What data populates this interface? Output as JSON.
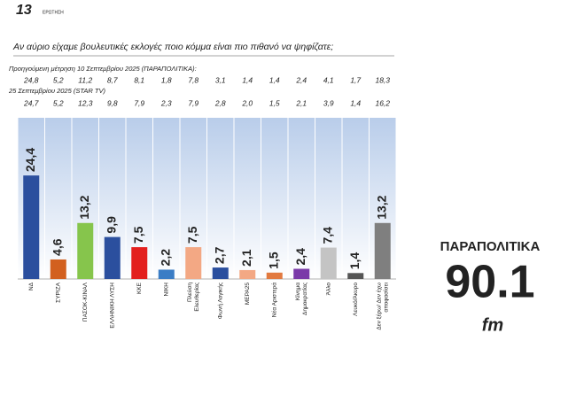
{
  "chart_data": {
    "type": "bar",
    "question_number": "13",
    "question_label": "ΕΡΩΤΗΣΗ",
    "title": "Αν αύριο είχαμε βουλευτικές εκλογές ποιο κόμμα είναι πιο πιθανό να ψηφίζατε;",
    "previous_rows": [
      {
        "label": "Προηγούμενη μέτρηση 10 Σεπτεμβρίου 2025 (ΠΑΡΑΠΟΛΙΤΙΚΑ):",
        "values": [
          "24,8",
          "5,2",
          "11,2",
          "8,7",
          "8,1",
          "1,8",
          "7,8",
          "3,1",
          "1,4",
          "1,4",
          "2,4",
          "4,1",
          "1,7",
          "18,3"
        ]
      },
      {
        "label": "25 Σεπτεμβρίου 2025 (STAR TV)",
        "values": [
          "24,7",
          "5,2",
          "12,3",
          "9,8",
          "7,9",
          "2,3",
          "7,9",
          "2,8",
          "2,0",
          "1,5",
          "2,1",
          "3,9",
          "1,4",
          "16,2"
        ]
      }
    ],
    "categories": [
      [
        "ΝΔ"
      ],
      [
        "ΣΥΡΙΖΑ"
      ],
      [
        "ΠΑΣΟΚ-ΚΙΝΑΛ"
      ],
      [
        "ΕΛΛΗΝΙΚΗ ΛΥΣΗ"
      ],
      [
        "ΚΚΕ"
      ],
      [
        "ΝΙΚΗ"
      ],
      [
        "Πλεύση",
        "Ελευθερίας"
      ],
      [
        "Φωνή Λογικής"
      ],
      [
        "ΜΕΡΑ25"
      ],
      [
        "Νέα Αριστερά"
      ],
      [
        "Κίνημα",
        "Δημοκρατίας"
      ],
      [
        "Άλλο"
      ],
      [
        "Λευκό/Άκυρο"
      ],
      [
        "Δεν ξέρω/ Δεν έχω",
        "αποφασίσει"
      ]
    ],
    "values": [
      24.4,
      4.6,
      13.2,
      9.9,
      7.5,
      2.2,
      7.5,
      2.7,
      2.1,
      1.5,
      2.4,
      7.4,
      1.4,
      13.2
    ],
    "value_labels": [
      "24,4",
      "4,6",
      "13,2",
      "9,9",
      "7,5",
      "2,2",
      "7,5",
      "2,7",
      "2,1",
      "1,5",
      "2,4",
      "7,4",
      "1,4",
      "13,2"
    ],
    "colors": [
      "#2b4f9e",
      "#d2601f",
      "#86c54c",
      "#2b4f9e",
      "#e3201e",
      "#3b7dc5",
      "#f3a884",
      "#2b4f9e",
      "#f3a884",
      "#e27a40",
      "#7a3aa8",
      "#c4c4c4",
      "#555555",
      "#7f7f7f"
    ],
    "ylim": [
      0,
      38
    ],
    "logo": {
      "name": "ΠΑΡΑΠΟΛΙΤΙΚΑ",
      "frequency": "90.1",
      "band": "fm"
    }
  }
}
